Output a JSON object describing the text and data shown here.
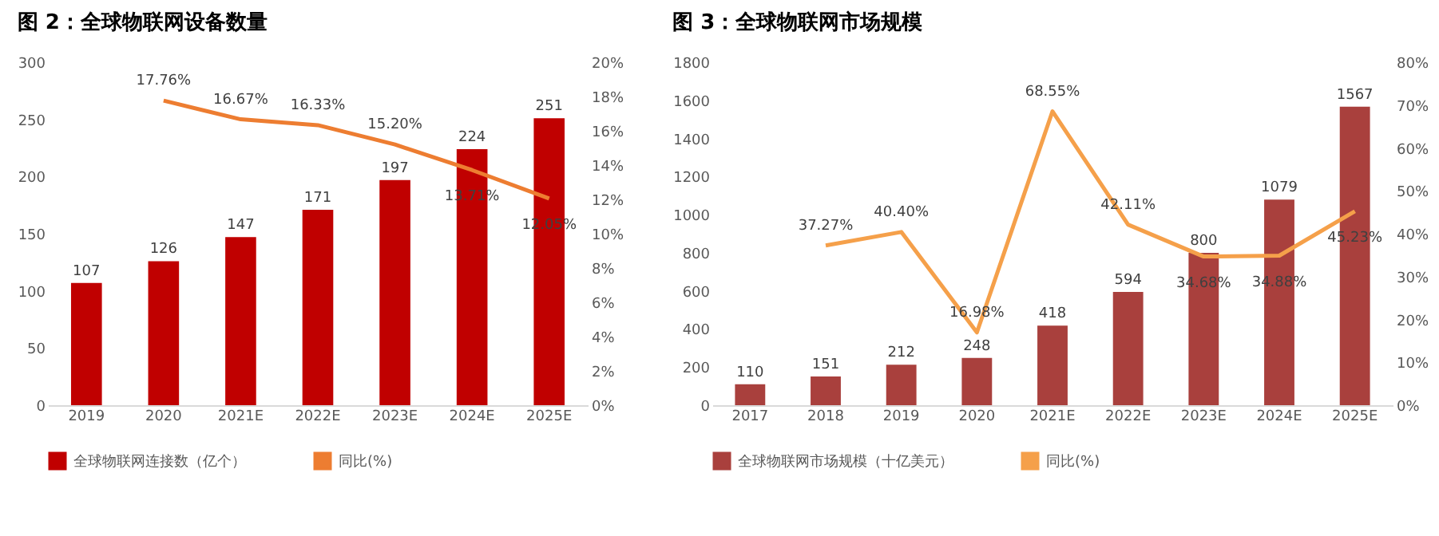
{
  "chart_data": [
    {
      "type": "bar",
      "title": "图 2：全球物联网设备数量",
      "categories": [
        "2019",
        "2020",
        "2021E",
        "2022E",
        "2023E",
        "2024E",
        "2025E"
      ],
      "series": [
        {
          "name": "全球物联网连接数（亿个）",
          "color": "#c00000",
          "values": [
            107,
            126,
            147,
            171,
            197,
            224,
            251
          ],
          "value_labels": [
            "107",
            "126",
            "147",
            "171",
            "197",
            "224",
            "251"
          ]
        },
        {
          "name": "同比(%)",
          "type": "line",
          "axis": "y2",
          "color": "#ed7d31",
          "values": [
            null,
            17.76,
            16.67,
            16.33,
            15.2,
            13.71,
            12.05
          ],
          "value_labels": [
            null,
            "17.76%",
            "16.67%",
            "16.33%",
            "15.20%",
            "13.71%",
            "12.05%"
          ]
        }
      ],
      "ylim": [
        0,
        300
      ],
      "yticks": [
        0,
        50,
        100,
        150,
        200,
        250,
        300
      ],
      "y2lim": [
        0,
        20
      ],
      "y2ticks": [
        {
          "value": 0,
          "label": "0%"
        },
        {
          "value": 2,
          "label": "2%"
        },
        {
          "value": 4,
          "label": "4%"
        },
        {
          "value": 6,
          "label": "6%"
        },
        {
          "value": 8,
          "label": "8%"
        },
        {
          "value": 10,
          "label": "10%"
        },
        {
          "value": 12,
          "label": "12%"
        },
        {
          "value": 14,
          "label": "14%"
        },
        {
          "value": 16,
          "label": "16%"
        },
        {
          "value": 18,
          "label": "18%"
        },
        {
          "value": 20,
          "label": "20%"
        }
      ],
      "legend": "bottom"
    },
    {
      "type": "bar",
      "title": "图 3：全球物联网市场规模",
      "categories": [
        "2017",
        "2018",
        "2019",
        "2020",
        "2021E",
        "2022E",
        "2023E",
        "2024E",
        "2025E"
      ],
      "series": [
        {
          "name": "全球物联网市场规模（十亿美元）",
          "color": "#a9403d",
          "values": [
            110,
            151,
            212,
            248,
            418,
            594,
            800,
            1079,
            1567
          ],
          "value_labels": [
            "110",
            "151",
            "212",
            "248",
            "418",
            "594",
            "800",
            "1079",
            "1567"
          ]
        },
        {
          "name": "同比(%)",
          "type": "line",
          "axis": "y2",
          "color": "#f5a04a",
          "values": [
            null,
            37.27,
            40.4,
            16.98,
            68.55,
            42.11,
            34.68,
            34.88,
            45.23
          ],
          "value_labels": [
            null,
            "37.27%",
            "40.40%",
            "16.98%",
            "68.55%",
            "42.11%",
            "34.68%",
            "34.88%",
            "45.23%"
          ]
        }
      ],
      "ylim": [
        0,
        1800
      ],
      "yticks": [
        0,
        200,
        400,
        600,
        800,
        1000,
        1200,
        1400,
        1600,
        1800
      ],
      "y2lim": [
        0,
        80
      ],
      "y2ticks": [
        {
          "value": 0,
          "label": "0%"
        },
        {
          "value": 10,
          "label": "10%"
        },
        {
          "value": 20,
          "label": "20%"
        },
        {
          "value": 30,
          "label": "30%"
        },
        {
          "value": 40,
          "label": "40%"
        },
        {
          "value": 50,
          "label": "50%"
        },
        {
          "value": 60,
          "label": "60%"
        },
        {
          "value": 70,
          "label": "70%"
        },
        {
          "value": 80,
          "label": "80%"
        }
      ],
      "legend": "bottom"
    }
  ]
}
